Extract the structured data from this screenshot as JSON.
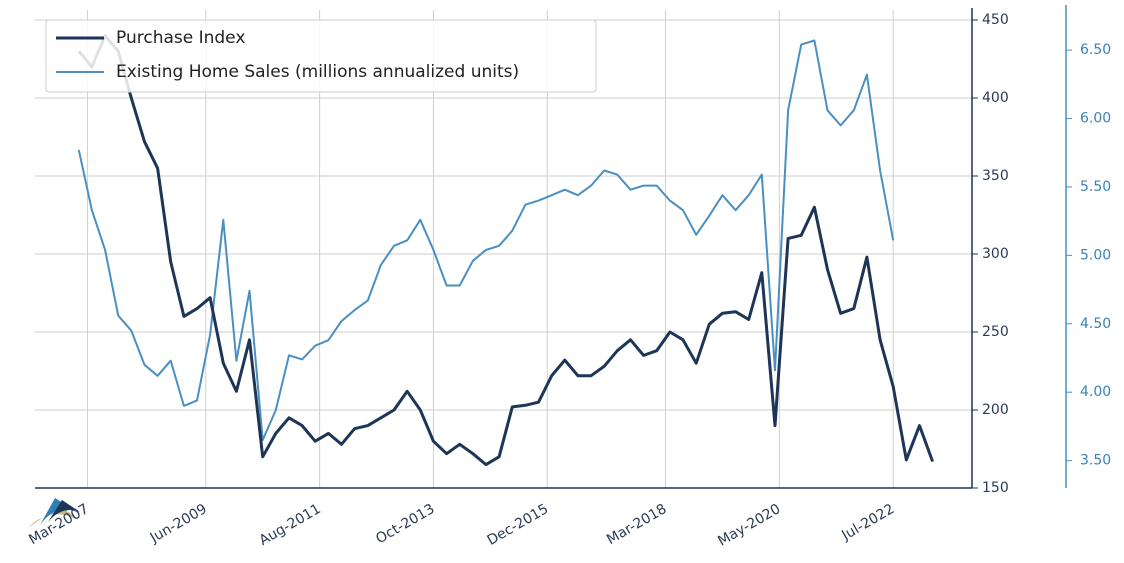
{
  "chart_data": {
    "type": "line",
    "x": [
      "2007-01",
      "2007-04",
      "2007-07",
      "2007-10",
      "2008-01",
      "2008-04",
      "2008-07",
      "2008-10",
      "2009-01",
      "2009-04",
      "2009-07",
      "2009-10",
      "2010-01",
      "2010-04",
      "2010-07",
      "2010-10",
      "2011-01",
      "2011-04",
      "2011-07",
      "2011-10",
      "2012-01",
      "2012-04",
      "2012-07",
      "2012-10",
      "2013-01",
      "2013-04",
      "2013-07",
      "2013-10",
      "2014-01",
      "2014-04",
      "2014-07",
      "2014-10",
      "2015-01",
      "2015-04",
      "2015-07",
      "2015-10",
      "2016-01",
      "2016-04",
      "2016-07",
      "2016-10",
      "2017-01",
      "2017-04",
      "2017-07",
      "2017-10",
      "2018-01",
      "2018-04",
      "2018-07",
      "2018-10",
      "2019-01",
      "2019-04",
      "2019-07",
      "2019-10",
      "2020-01",
      "2020-04",
      "2020-07",
      "2020-10",
      "2021-01",
      "2021-04",
      "2021-07",
      "2021-10",
      "2022-01",
      "2022-04",
      "2022-07",
      "2022-10",
      "2023-01",
      "2023-04"
    ],
    "series": [
      {
        "name": "Purchase Index",
        "color": "#1d3557",
        "axis": "y",
        "values": [
          430,
          420,
          440,
          430,
          400,
          372,
          355,
          295,
          260,
          265,
          272,
          230,
          212,
          245,
          170,
          185,
          195,
          190,
          180,
          185,
          178,
          188,
          190,
          195,
          200,
          212,
          200,
          180,
          172,
          178,
          172,
          165,
          170,
          202,
          203,
          205,
          222,
          232,
          222,
          222,
          228,
          238,
          245,
          235,
          238,
          250,
          245,
          230,
          255,
          262,
          263,
          258,
          288,
          190,
          310,
          312,
          330,
          290,
          262,
          265,
          298,
          245,
          215,
          168,
          190,
          167
        ]
      },
      {
        "name": "Existing Home Sales (millions annualized units)",
        "color": "#4a8fc2",
        "axis": "y2",
        "values": [
          5.77,
          5.33,
          5.04,
          4.56,
          4.45,
          4.2,
          4.12,
          4.23,
          3.9,
          3.94,
          4.42,
          5.26,
          4.23,
          4.74,
          3.65,
          3.87,
          4.27,
          4.24,
          4.34,
          4.38,
          4.52,
          4.6,
          4.67,
          4.93,
          5.07,
          5.11,
          5.26,
          5.04,
          4.78,
          4.78,
          4.96,
          5.04,
          5.07,
          5.18,
          5.37,
          5.4,
          5.44,
          5.48,
          5.44,
          5.51,
          5.62,
          5.59,
          5.48,
          5.51,
          5.51,
          5.4,
          5.33,
          5.15,
          5.29,
          5.44,
          5.33,
          5.44,
          5.59,
          4.16,
          6.06,
          6.54,
          6.57,
          6.06,
          5.95,
          6.06,
          6.32,
          5.62,
          5.11,
          null,
          null,
          null
        ]
      }
    ],
    "xlim": [
      "2006-03",
      "2024-01"
    ],
    "xticks": [
      {
        "value": "2007-03",
        "label": "Mar-2007"
      },
      {
        "value": "2009-06",
        "label": "Jun-2009"
      },
      {
        "value": "2011-08",
        "label": "Aug-2011"
      },
      {
        "value": "2013-10",
        "label": "Oct-2013"
      },
      {
        "value": "2015-12",
        "label": "Dec-2015"
      },
      {
        "value": "2018-03",
        "label": "Mar-2018"
      },
      {
        "value": "2020-05",
        "label": "May-2020"
      },
      {
        "value": "2022-07",
        "label": "Jul-2022"
      }
    ],
    "ylim": [
      150,
      450
    ],
    "yticks": [
      150,
      200,
      250,
      300,
      350,
      400,
      450
    ],
    "y2lim": [
      3.3,
      6.72
    ],
    "y2ticks": [
      {
        "value": 3.5,
        "label": "3.50"
      },
      {
        "value": 4,
        "label": "4.00"
      },
      {
        "value": 4.5,
        "label": "4.50"
      },
      {
        "value": 5,
        "label": "5.00"
      },
      {
        "value": 5.5,
        "label": "5.50"
      },
      {
        "value": 6,
        "label": "6.00"
      },
      {
        "value": 6.5,
        "label": "6.50"
      }
    ],
    "grid": true,
    "legend": "upper left"
  }
}
